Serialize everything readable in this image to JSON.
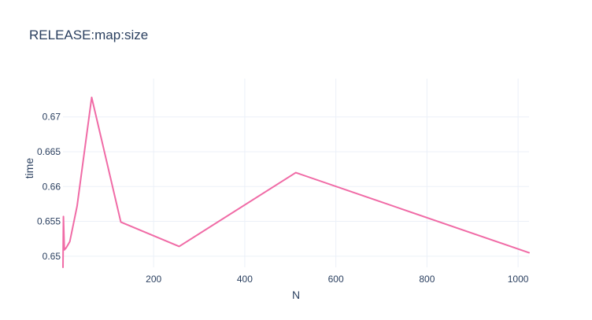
{
  "chart_data": {
    "type": "line",
    "title": "RELEASE:map:size",
    "xlabel": "N",
    "ylabel": "time",
    "xlim": [
      1,
      1024
    ],
    "ylim": [
      0.6484,
      0.6755
    ],
    "grid": true,
    "x_ticks": [
      200,
      400,
      600,
      800,
      1000
    ],
    "x_tick_labels": [
      "200",
      "400",
      "600",
      "800",
      "1000"
    ],
    "y_ticks": [
      0.65,
      0.655,
      0.66,
      0.665,
      0.67
    ],
    "y_tick_labels": [
      "0.65",
      "0.655",
      "0.66",
      "0.665",
      "0.67"
    ],
    "series": [
      {
        "color": "#f06ba6",
        "x": [
          1,
          2,
          4,
          8,
          16,
          32,
          64,
          128,
          256,
          512,
          1024
        ],
        "y": [
          0.6484,
          0.6557,
          0.6509,
          0.6512,
          0.6521,
          0.6572,
          0.6728,
          0.6549,
          0.6514,
          0.662,
          0.6505
        ]
      }
    ]
  }
}
